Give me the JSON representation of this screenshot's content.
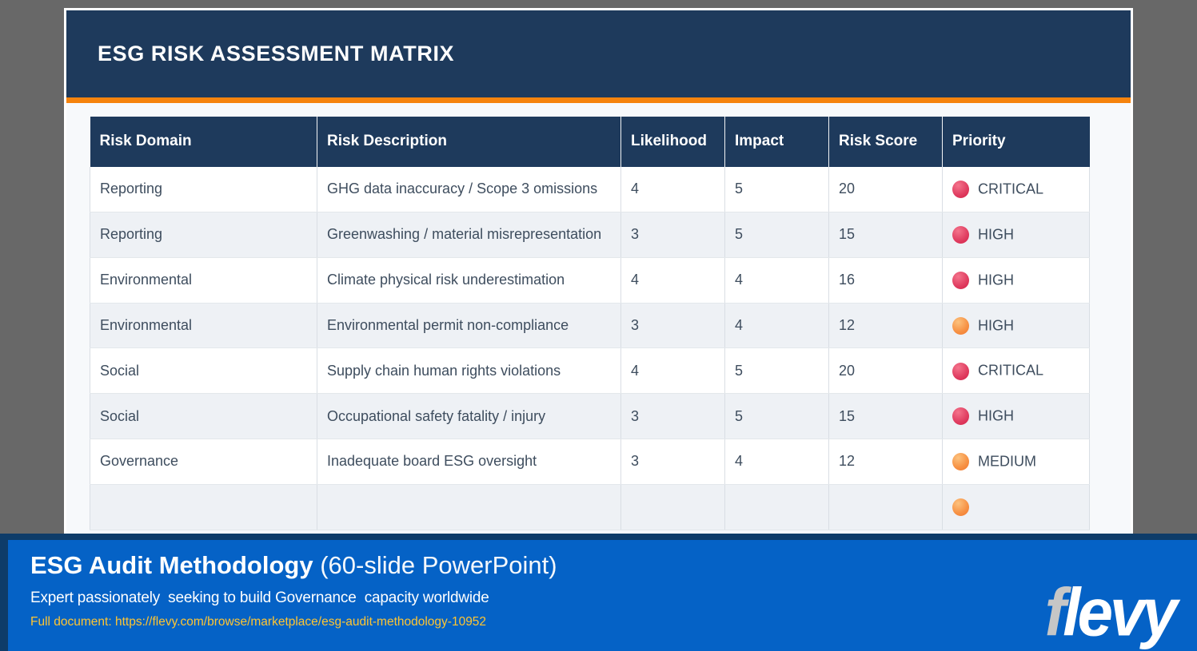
{
  "slide": {
    "title": "ESG RISK ASSESSMENT MATRIX",
    "table": {
      "columns": [
        "Risk Domain",
        "Risk Description",
        "Likelihood",
        "Impact",
        "Risk Score",
        "Priority"
      ],
      "rows": [
        {
          "domain": "Reporting",
          "description": "GHG data inaccuracy / Scope 3 omissions",
          "likelihood": "4",
          "impact": "5",
          "score": "20",
          "priority": "CRITICAL",
          "dot": "red"
        },
        {
          "domain": "Reporting",
          "description": "Greenwashing / material misrepresentation",
          "likelihood": "3",
          "impact": "5",
          "score": "15",
          "priority": "HIGH",
          "dot": "red"
        },
        {
          "domain": "Environmental",
          "description": "Climate physical risk underestimation",
          "likelihood": "4",
          "impact": "4",
          "score": "16",
          "priority": "HIGH",
          "dot": "red"
        },
        {
          "domain": "Environmental",
          "description": "Environmental permit non-compliance",
          "likelihood": "3",
          "impact": "4",
          "score": "12",
          "priority": "HIGH",
          "dot": "orange"
        },
        {
          "domain": "Social",
          "description": "Supply chain human rights violations",
          "likelihood": "4",
          "impact": "5",
          "score": "20",
          "priority": "CRITICAL",
          "dot": "red"
        },
        {
          "domain": "Social",
          "description": "Occupational safety fatality / injury",
          "likelihood": "3",
          "impact": "5",
          "score": "15",
          "priority": "HIGH",
          "dot": "red"
        },
        {
          "domain": "Governance",
          "description": "Inadequate board ESG oversight",
          "likelihood": "3",
          "impact": "4",
          "score": "12",
          "priority": "MEDIUM",
          "dot": "orange"
        },
        {
          "domain": "",
          "description": "",
          "likelihood": "",
          "impact": "",
          "score": "",
          "priority": "",
          "dot": "orange"
        }
      ]
    }
  },
  "banner": {
    "title_bold": "ESG Audit Methodology",
    "title_regular": " (60-slide PowerPoint)",
    "subtitle": "Expert passionately  seeking to build Governance  capacity worldwide",
    "link": "Full document: https://flevy.com/browse/marketplace/esg-audit-methodology-10952",
    "logo_f": "f",
    "logo_rest": "levy"
  },
  "colors": {
    "page_background": "#686868",
    "header_navy": "#1E3A5C",
    "accent_orange": "#F5830D",
    "row_alt": "#EEF1F5",
    "cell_text": "#3E4D5E",
    "banner_blue": "#0562C6",
    "banner_border_navy": "#0E3C69",
    "link_yellow": "#FFC532",
    "dot_red": "#DC2850",
    "dot_orange": "#F1762B"
  }
}
